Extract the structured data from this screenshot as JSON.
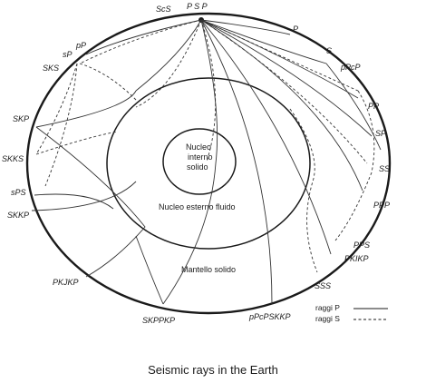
{
  "figure": {
    "caption": "Seismic rays in the Earth",
    "regions": {
      "inner_core": [
        "Nucleo",
        "interno",
        "solido"
      ],
      "outer_core": "Nucleo esterno fluido",
      "mantle": "Mantello solido"
    },
    "phase_labels": {
      "ScS": "ScS",
      "P_S_P": "P S P",
      "P": "P",
      "S": "S",
      "pPcP": "pPcP",
      "PP": "PP",
      "SP_right": "SP",
      "SS": "SS",
      "PPP": "PPP",
      "PPS": "PPS",
      "PKIKP": "PKIKP",
      "SSS": "SSS",
      "pPcPSKKP": "pPcPSKKP",
      "SKPPKP": "SKPPKP",
      "PKJKP": "PKJKP",
      "SKKP": "SKKP",
      "sPS": "sPS",
      "SKKS": "SKKS",
      "SKP": "SKP",
      "SKS": "SKS",
      "sP": "sP",
      "pP": "pP"
    },
    "legend": {
      "p_rays": "raggi P",
      "s_rays": "raggi S"
    },
    "colors": {
      "ink": "#1a1a1a",
      "background": "#ffffff"
    }
  }
}
